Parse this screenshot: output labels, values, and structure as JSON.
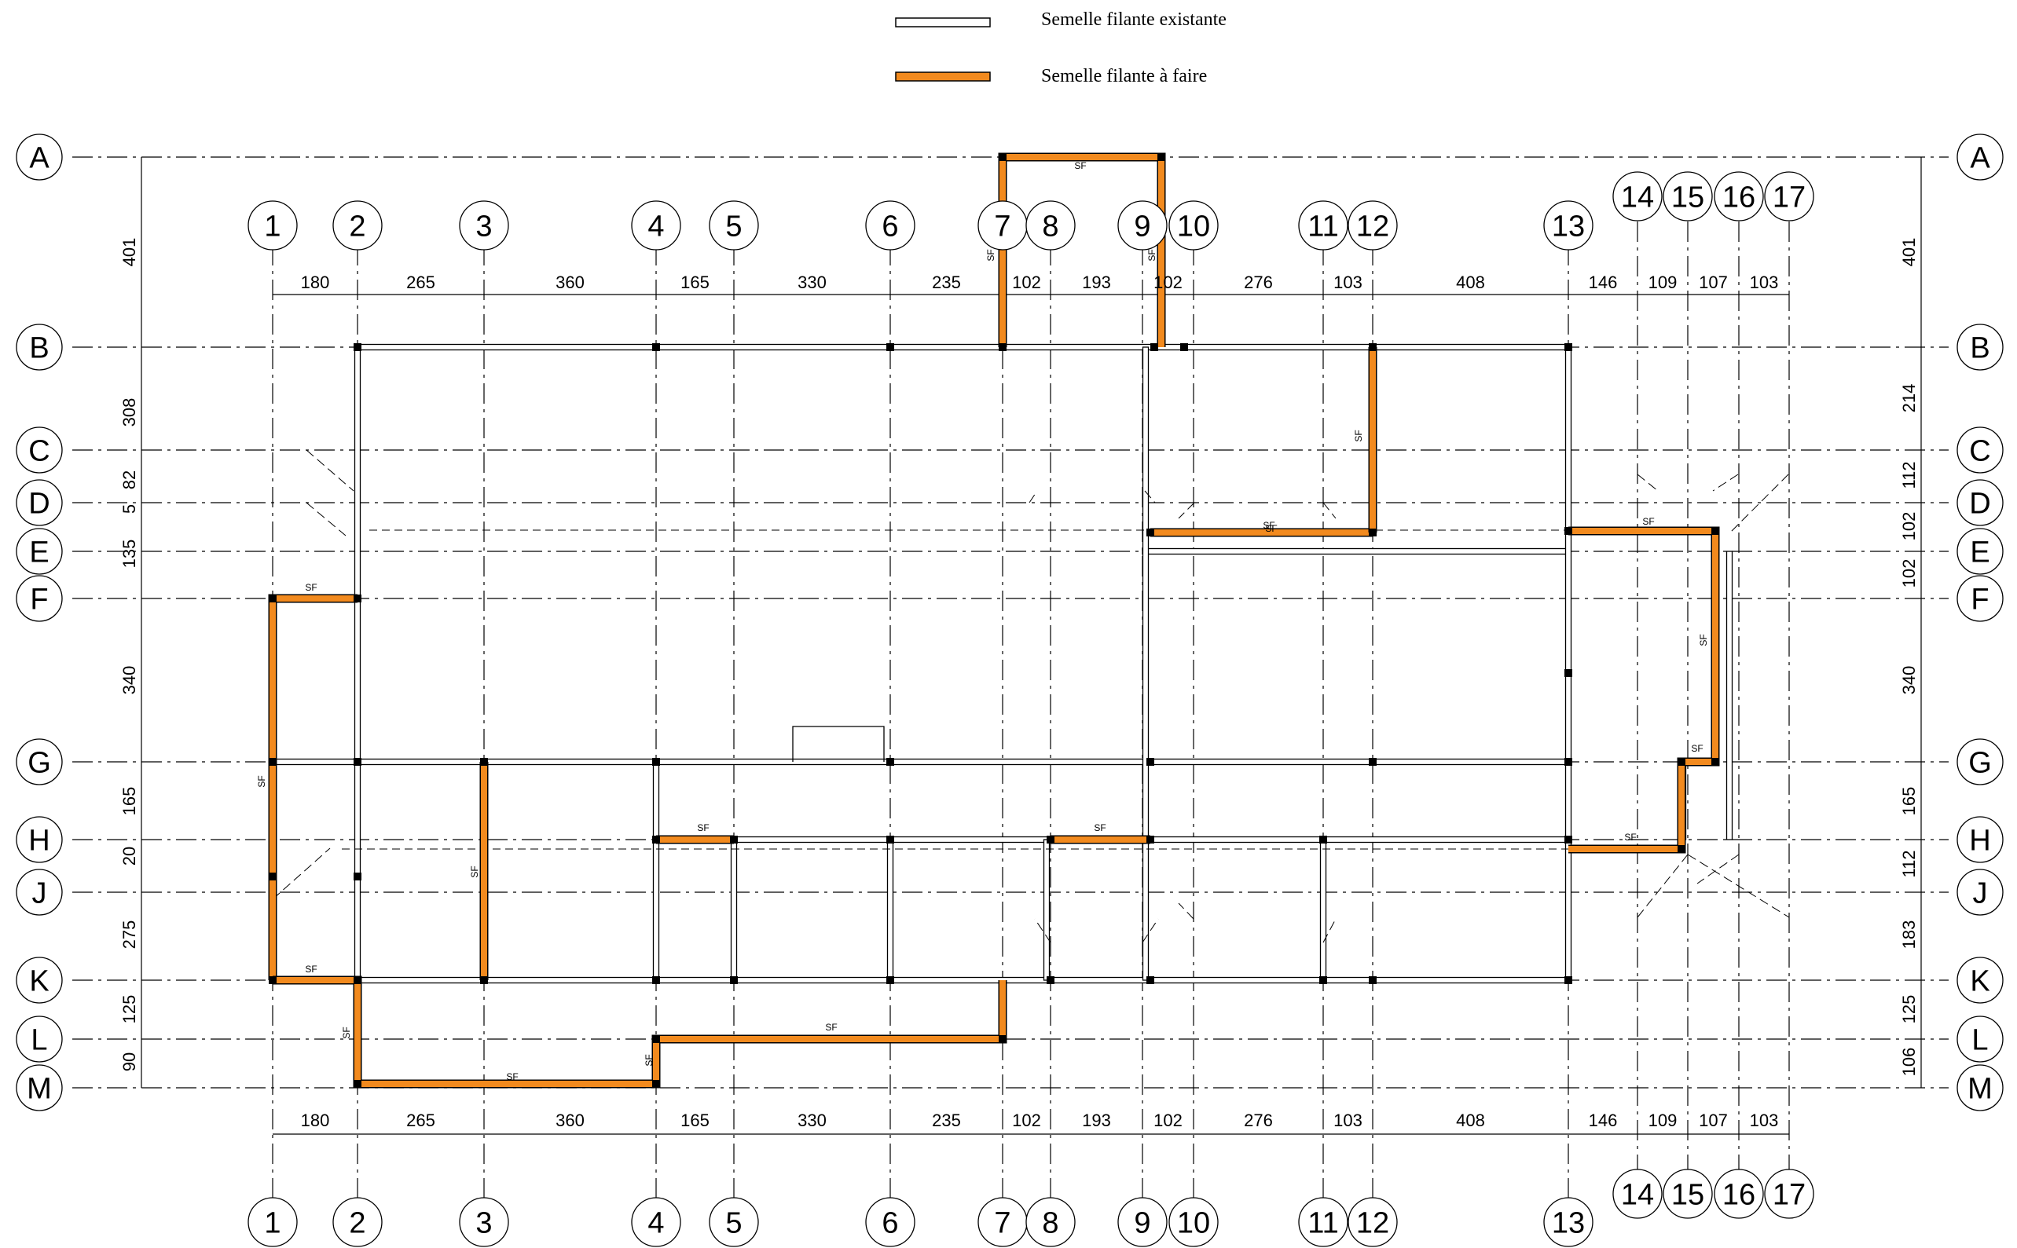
{
  "legend": {
    "existing_label": "Semelle filante existante",
    "new_label": "Semelle filante à faire"
  },
  "colors": {
    "new_footing": "#f28a1e",
    "existing_footing": "#ffffff",
    "line": "#000000"
  },
  "footing_tag": "SF",
  "axes": {
    "columns": [
      "1",
      "2",
      "3",
      "4",
      "5",
      "6",
      "7",
      "8",
      "9",
      "10",
      "11",
      "12",
      "13",
      "14",
      "15",
      "16",
      "17"
    ],
    "rows": [
      "A",
      "B",
      "C",
      "D",
      "E",
      "F",
      "G",
      "H",
      "J",
      "K",
      "L",
      "M"
    ]
  },
  "dimensions": {
    "top": [
      "180",
      "265",
      "360",
      "165",
      "330",
      "235",
      "102",
      "193",
      "102",
      "276",
      "103",
      "408",
      "146",
      "109",
      "107",
      "103"
    ],
    "bottom": [
      "180",
      "265",
      "360",
      "165",
      "330",
      "235",
      "102",
      "193",
      "102",
      "276",
      "103",
      "408",
      "146",
      "109",
      "107",
      "103"
    ],
    "left": [
      "401",
      "308",
      "82",
      "5",
      "135",
      "340",
      "165",
      "20",
      "275",
      "125",
      "90"
    ],
    "right": [
      "401",
      "214",
      "112",
      "102",
      "102",
      "340",
      "165",
      "112",
      "183",
      "125",
      "106"
    ]
  }
}
